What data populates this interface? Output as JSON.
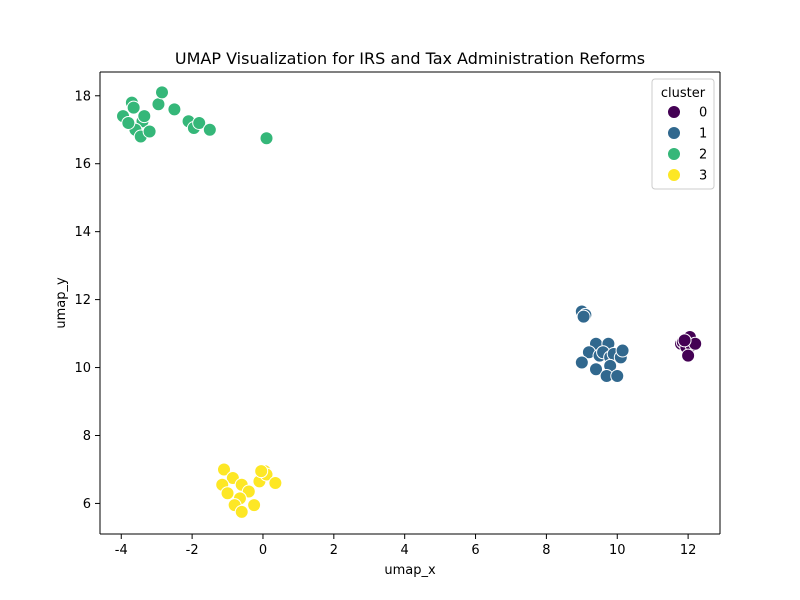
{
  "chart_data": {
    "type": "scatter",
    "title": "UMAP Visualization for IRS and Tax Administration Reforms",
    "xlabel": "umap_x",
    "ylabel": "umap_y",
    "xlim": [
      -4.6,
      12.9
    ],
    "ylim": [
      5.1,
      18.7
    ],
    "xticks": [
      -4,
      -2,
      0,
      2,
      4,
      6,
      8,
      10,
      12
    ],
    "yticks": [
      6,
      8,
      10,
      12,
      14,
      16,
      18
    ],
    "grid": false,
    "legend": {
      "title": "cluster",
      "placement": "top-right",
      "entries": [
        "0",
        "1",
        "2",
        "3"
      ]
    },
    "series": [
      {
        "name": "0",
        "color": "#440154",
        "points": [
          [
            11.8,
            10.7
          ],
          [
            11.85,
            10.75
          ],
          [
            11.95,
            10.6
          ],
          [
            12.05,
            10.9
          ],
          [
            12.1,
            10.65
          ],
          [
            12.2,
            10.7
          ],
          [
            12.0,
            10.35
          ],
          [
            11.9,
            10.8
          ]
        ]
      },
      {
        "name": "1",
        "color": "#31688e",
        "points": [
          [
            9.0,
            11.65
          ],
          [
            9.1,
            11.55
          ],
          [
            9.05,
            11.5
          ],
          [
            9.4,
            10.7
          ],
          [
            9.75,
            10.7
          ],
          [
            9.2,
            10.45
          ],
          [
            9.5,
            10.35
          ],
          [
            9.6,
            10.45
          ],
          [
            9.8,
            10.3
          ],
          [
            9.9,
            10.4
          ],
          [
            10.1,
            10.3
          ],
          [
            10.15,
            10.5
          ],
          [
            9.0,
            10.15
          ],
          [
            9.8,
            10.05
          ],
          [
            9.4,
            9.95
          ],
          [
            9.7,
            9.75
          ],
          [
            10.0,
            9.75
          ]
        ]
      },
      {
        "name": "2",
        "color": "#35b779",
        "points": [
          [
            -3.95,
            17.4
          ],
          [
            -3.7,
            17.8
          ],
          [
            -3.65,
            17.65
          ],
          [
            -3.4,
            17.25
          ],
          [
            -3.35,
            17.4
          ],
          [
            -3.6,
            17.0
          ],
          [
            -3.45,
            16.8
          ],
          [
            -3.2,
            16.95
          ],
          [
            -2.95,
            17.75
          ],
          [
            -2.85,
            18.1
          ],
          [
            -2.5,
            17.6
          ],
          [
            -2.1,
            17.25
          ],
          [
            -1.95,
            17.05
          ],
          [
            -1.8,
            17.2
          ],
          [
            -1.5,
            17.0
          ],
          [
            0.1,
            16.75
          ],
          [
            -3.8,
            17.2
          ]
        ]
      },
      {
        "name": "3",
        "color": "#fde725",
        "points": [
          [
            -1.1,
            7.0
          ],
          [
            -0.85,
            6.75
          ],
          [
            -1.15,
            6.55
          ],
          [
            -1.0,
            6.3
          ],
          [
            -0.6,
            6.55
          ],
          [
            -0.4,
            6.35
          ],
          [
            -0.65,
            6.15
          ],
          [
            -0.8,
            5.95
          ],
          [
            -0.6,
            5.75
          ],
          [
            -0.25,
            5.95
          ],
          [
            -0.1,
            6.65
          ],
          [
            0.05,
            6.95
          ],
          [
            0.1,
            6.85
          ],
          [
            0.35,
            6.6
          ],
          [
            -0.05,
            6.95
          ]
        ]
      }
    ]
  }
}
